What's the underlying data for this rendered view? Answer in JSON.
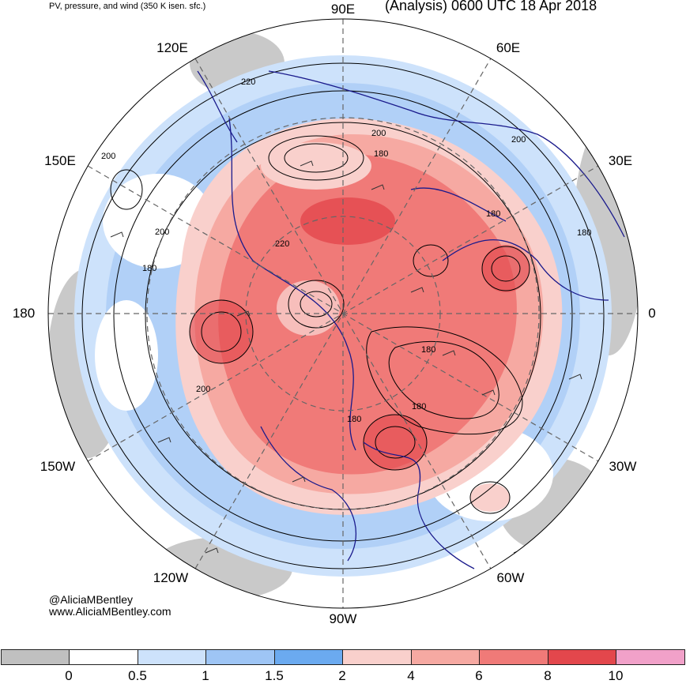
{
  "header": {
    "left_title": "PV, pressure, and wind (350 K isen. sfc.)",
    "right_title": "(Analysis) 0600 UTC 18 Apr 2018"
  },
  "longitude_labels": {
    "lon_90e": "90E",
    "lon_60e": "60E",
    "lon_120e": "120E",
    "lon_30e": "30E",
    "lon_150e": "150E",
    "lon_180": "180",
    "lon_0": "0",
    "lon_150w": "150W",
    "lon_30w": "30W",
    "lon_120w": "120W",
    "lon_60w": "60W",
    "lon_90w": "90W"
  },
  "contour_labels": [
    "220",
    "200",
    "180",
    "200",
    "180",
    "200",
    "180",
    "180",
    "200",
    "220",
    "180",
    "200",
    "180",
    "180"
  ],
  "credits": {
    "twitter": "@AliciaMBentley",
    "website": "www.AliciaMBentley.com"
  },
  "colorbar": {
    "ticks": [
      "0",
      "0.5",
      "1",
      "1.5",
      "2",
      "4",
      "6",
      "8",
      "10"
    ],
    "colors": [
      "#c0c0c0",
      "#ffffff",
      "#cde2fb",
      "#9ec5f5",
      "#6baaf0",
      "#f9d0cc",
      "#f6a9a2",
      "#f07a78",
      "#e3474c",
      "#f1a1c9"
    ]
  },
  "map": {
    "colors": {
      "ocean_gray": "#c0c0c0",
      "light_blue": "#cde2fb",
      "mid_blue": "#9ec5f5",
      "blue": "#6baaf0",
      "light_red": "#f9d0cc",
      "red1": "#f6a9a2",
      "red2": "#f07a78",
      "red3": "#e3474c",
      "coast": "#1a1a8c",
      "contour": "#000000",
      "grid": "#666666"
    }
  }
}
